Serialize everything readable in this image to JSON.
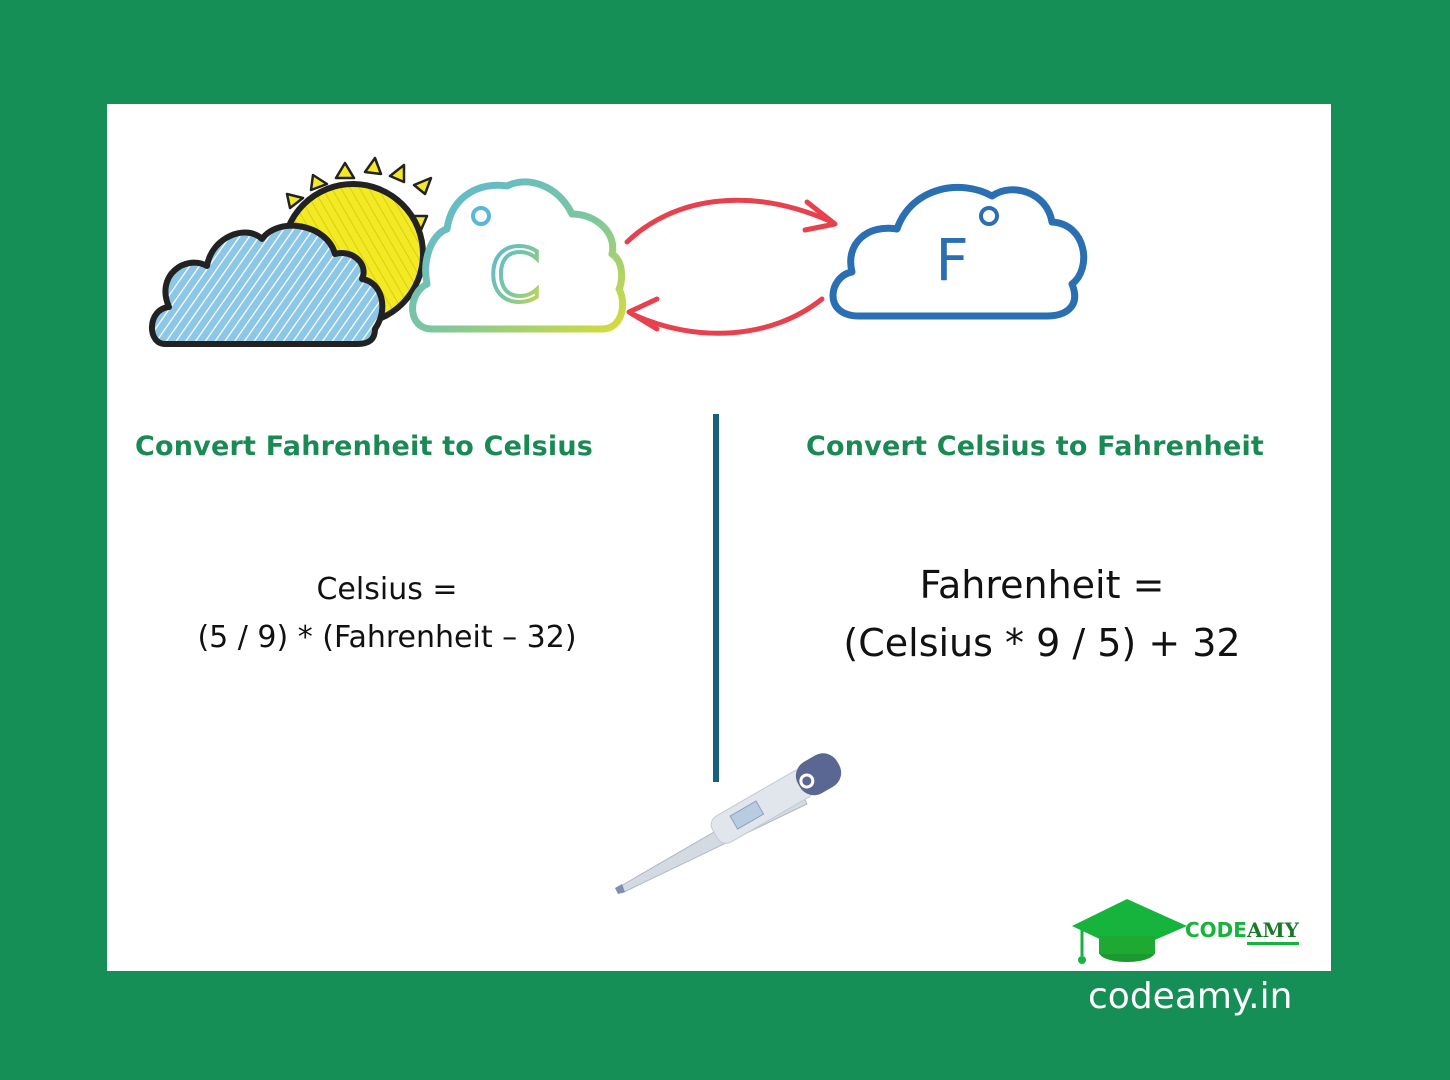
{
  "left": {
    "heading": "Convert Fahrenheit to Celsius",
    "formula_line1": "Celsius =",
    "formula_line2": "(5 / 9) * (Fahrenheit – 32)"
  },
  "right": {
    "heading": "Convert Celsius to Fahrenheit",
    "formula_line1": "Fahrenheit =",
    "formula_line2": "(Celsius * 9 / 5) + 32"
  },
  "icons": {
    "celsius_letter": "C",
    "fahrenheit_letter": "F"
  },
  "brand": {
    "name_part1": "CODE",
    "name_part2": "AMY",
    "site": "codeamy.in"
  },
  "colors": {
    "background": "#168f57",
    "heading": "#1a8a55",
    "divider": "#17607a",
    "arrows": "#e8414e",
    "fahrenheit_cloud": "#2b6fb3",
    "sun": "#f3ea25",
    "rain_cloud": "#7ab9df"
  }
}
